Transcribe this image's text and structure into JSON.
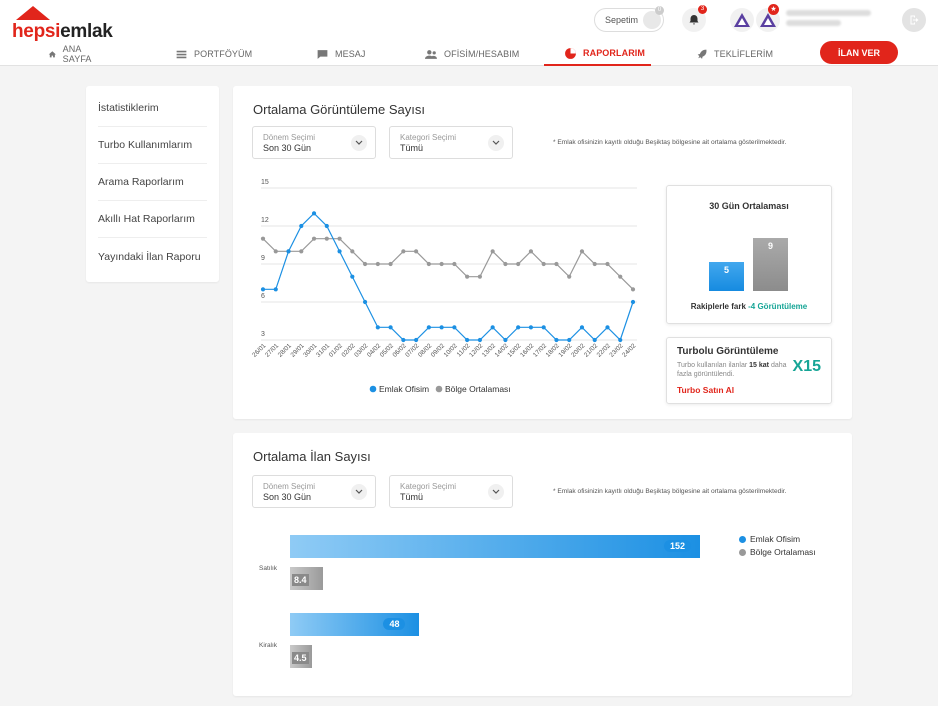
{
  "brand": {
    "part1": "hepsi",
    "part2": "emlak"
  },
  "nav": [
    {
      "label": "ANA SAYFA",
      "icon": "home-icon"
    },
    {
      "label": "PORTFÖYÜM",
      "icon": "list-icon"
    },
    {
      "label": "MESAJ",
      "icon": "message-icon"
    },
    {
      "label": "OFİSİM/HESABIM",
      "icon": "users-icon"
    },
    {
      "label": "RAPORLARIM",
      "icon": "chart-pie-icon",
      "active": true
    },
    {
      "label": "TEKLİFLERİM",
      "icon": "rocket-icon"
    }
  ],
  "cta": "İLAN VER",
  "header": {
    "cart_label": "Sepetim",
    "cart_count": "0",
    "bell_count": "3",
    "star_glyph": "★"
  },
  "sidebar": [
    "İstatistiklerim",
    "Turbo Kullanımlarım",
    "Arama Raporlarım",
    "Akıllı Hat Raporlarım",
    "Yayındaki İlan Raporu"
  ],
  "panel1": {
    "title": "Ortalama Görüntüleme Sayısı",
    "period_label": "Dönem Seçimi",
    "period_value": "Son 30 Gün",
    "category_label": "Kategori Seçimi",
    "category_value": "Tümü",
    "note": "* Emlak ofisinizin kayıtlı olduğu Beşiktaş bölgesine ait ortalama gösterilmektedir.",
    "avg_card": {
      "title": "30 Gün Ortalaması",
      "mine": "5",
      "region": "9",
      "diff_label": "Rakiplerle fark",
      "diff_value": "-4 Görüntüleme"
    },
    "turbo_card": {
      "title": "Turbolu Görüntüleme",
      "desc_pre": "Turbo kullanılan ilanlar",
      "desc_bold": "15 kat",
      "desc_post": "daha fazla görüntülendi.",
      "multiplier": "X15",
      "action": "Turbo Satın Al"
    }
  },
  "panel2": {
    "title": "Ortalama İlan Sayısı",
    "period_label": "Dönem Seçimi",
    "period_value": "Son 30 Gün",
    "category_label": "Kategori Seçimi",
    "category_value": "Tümü",
    "note": "* Emlak ofisinizin kayıtlı olduğu Beşiktaş bölgesine ait ortalama gösterilmektedir."
  },
  "colors": {
    "accent": "#e1251b",
    "blue": "#1c90e3",
    "gray": "#999999",
    "teal": "#16a596"
  },
  "chart_data": [
    {
      "type": "line",
      "title": "Ortalama Görüntüleme Sayısı",
      "x": [
        "26/01",
        "27/01",
        "28/01",
        "29/01",
        "30/01",
        "31/01",
        "01/02",
        "02/02",
        "03/02",
        "04/02",
        "05/02",
        "06/02",
        "07/02",
        "08/02",
        "09/02",
        "10/02",
        "11/02",
        "12/02",
        "13/02",
        "14/02",
        "15/02",
        "16/02",
        "17/02",
        "18/02",
        "19/02",
        "20/02",
        "21/02",
        "22/02",
        "23/02",
        "24/02"
      ],
      "yticks": [
        3,
        6,
        9,
        12,
        15
      ],
      "ylim": [
        3,
        15
      ],
      "series": [
        {
          "name": "Emlak Ofisim",
          "color": "#1c90e3",
          "values": [
            7,
            7,
            10,
            12,
            13,
            12,
            10,
            8,
            6,
            4,
            4,
            3,
            3,
            4,
            4,
            4,
            3,
            3,
            4,
            3,
            4,
            4,
            4,
            3,
            3,
            4,
            3,
            4,
            3,
            6
          ]
        },
        {
          "name": "Bölge Ortalaması",
          "color": "#999999",
          "values": [
            11,
            10,
            10,
            10,
            11,
            11,
            11,
            10,
            9,
            9,
            9,
            10,
            10,
            9,
            9,
            9,
            8,
            8,
            10,
            9,
            9,
            10,
            9,
            9,
            8,
            10,
            9,
            9,
            8,
            7
          ]
        }
      ],
      "legend": "bottom"
    },
    {
      "type": "bar",
      "orientation": "horizontal",
      "title": "Ortalama İlan Sayısı",
      "categories": [
        "Satılık",
        "Kiralık"
      ],
      "series": [
        {
          "name": "Emlak Ofisim",
          "color": "#1c90e3",
          "values": [
            152,
            48
          ]
        },
        {
          "name": "Bölge Ortalaması",
          "color": "#999999",
          "values": [
            8.4,
            4.5
          ]
        }
      ],
      "legend": "top-right"
    }
  ]
}
